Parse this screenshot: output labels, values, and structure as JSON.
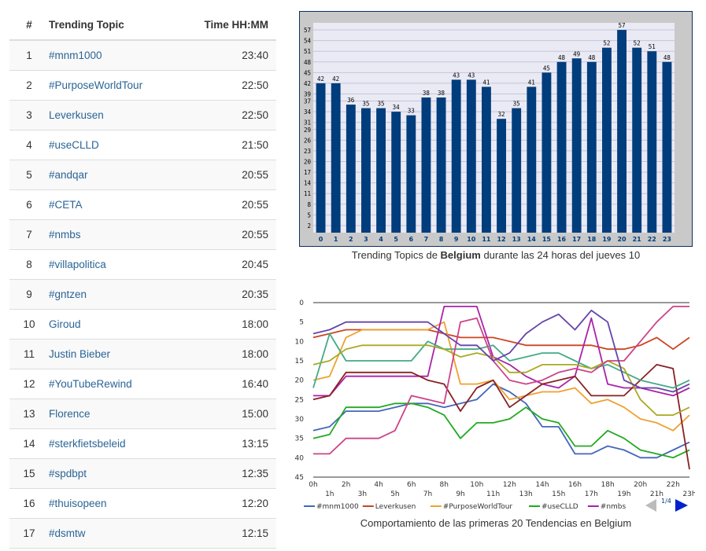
{
  "table": {
    "headers": [
      "#",
      "Trending Topic",
      "Time HH:MM"
    ],
    "rows": [
      {
        "n": "1",
        "topic": "#mnm1000",
        "time": "23:40"
      },
      {
        "n": "2",
        "topic": "#PurposeWorldTour",
        "time": "22:50"
      },
      {
        "n": "3",
        "topic": "Leverkusen",
        "time": "22:50"
      },
      {
        "n": "4",
        "topic": "#useCLLD",
        "time": "21:50"
      },
      {
        "n": "5",
        "topic": "#andqar",
        "time": "20:55"
      },
      {
        "n": "6",
        "topic": "#CETA",
        "time": "20:55"
      },
      {
        "n": "7",
        "topic": "#nmbs",
        "time": "20:55"
      },
      {
        "n": "8",
        "topic": "#villapolitica",
        "time": "20:45"
      },
      {
        "n": "9",
        "topic": "#gntzen",
        "time": "20:35"
      },
      {
        "n": "10",
        "topic": "Giroud",
        "time": "18:00"
      },
      {
        "n": "11",
        "topic": "Justin Bieber",
        "time": "18:00"
      },
      {
        "n": "12",
        "topic": "#YouTubeRewind",
        "time": "16:40"
      },
      {
        "n": "13",
        "topic": "Florence",
        "time": "15:00"
      },
      {
        "n": "14",
        "topic": "#sterkfietsbeleid",
        "time": "13:15"
      },
      {
        "n": "15",
        "topic": "#spdbpt",
        "time": "12:35"
      },
      {
        "n": "16",
        "topic": "#thuisopeen",
        "time": "12:20"
      },
      {
        "n": "17",
        "topic": "#dsmtw",
        "time": "12:15"
      }
    ]
  },
  "captions": {
    "bar_prefix": "Trending Topics de ",
    "bar_bold": "Belgium",
    "bar_suffix": " durante las 24 horas del jueves 10",
    "line": "Comportamiento de las primeras 20 Tendencias en Belgium"
  },
  "chart_data": [
    {
      "type": "bar",
      "categories": [
        "0",
        "1",
        "2",
        "3",
        "4",
        "5",
        "6",
        "7",
        "8",
        "9",
        "10",
        "11",
        "12",
        "13",
        "14",
        "15",
        "16",
        "17",
        "18",
        "19",
        "20",
        "21",
        "22",
        "23"
      ],
      "values": [
        42,
        42,
        36,
        35,
        35,
        34,
        33,
        38,
        38,
        43,
        43,
        41,
        32,
        35,
        41,
        45,
        48,
        49,
        48,
        52,
        57,
        52,
        51,
        48
      ],
      "y_ticks": [
        2,
        5,
        8,
        11,
        14,
        17,
        20,
        23,
        26,
        29,
        31,
        34,
        37,
        39,
        42,
        45,
        48,
        51,
        54,
        57
      ],
      "ylim": [
        0,
        59
      ],
      "bar_color": "#003d7c",
      "plot_bg": "#eaeaf5",
      "grid": true
    },
    {
      "type": "line",
      "x_ticks_top": [
        "0h",
        "2h",
        "4h",
        "6h",
        "8h",
        "10h",
        "12h",
        "14h",
        "16h",
        "18h",
        "20h",
        "22h"
      ],
      "x_ticks_bottom": [
        "1h",
        "3h",
        "5h",
        "7h",
        "9h",
        "11h",
        "13h",
        "15h",
        "17h",
        "19h",
        "21h",
        "23h"
      ],
      "y_ticks": [
        0,
        5,
        10,
        15,
        20,
        25,
        30,
        35,
        40,
        45
      ],
      "ylim": [
        45,
        0
      ],
      "xlim": [
        0,
        23
      ],
      "pager": "1/4",
      "series": [
        {
          "name": "#mnm1000",
          "color": "#4466bb",
          "points": [
            [
              0,
              33
            ],
            [
              1,
              32
            ],
            [
              2,
              28
            ],
            [
              3,
              28
            ],
            [
              4,
              28
            ],
            [
              5,
              27
            ],
            [
              6,
              26
            ],
            [
              7,
              26
            ],
            [
              8,
              27
            ],
            [
              9,
              26
            ],
            [
              10,
              25
            ],
            [
              11,
              21
            ],
            [
              12,
              23
            ],
            [
              13,
              26
            ],
            [
              14,
              32
            ],
            [
              15,
              32
            ],
            [
              16,
              39
            ],
            [
              17,
              39
            ],
            [
              18,
              37
            ],
            [
              19,
              38
            ],
            [
              20,
              40
            ],
            [
              21,
              40
            ],
            [
              22,
              38
            ],
            [
              23,
              36
            ]
          ]
        },
        {
          "name": "Leverkusen",
          "color": "#cc4422",
          "points": [
            [
              0,
              9
            ],
            [
              1,
              8
            ],
            [
              2,
              7
            ],
            [
              3,
              7
            ],
            [
              4,
              7
            ],
            [
              5,
              7
            ],
            [
              6,
              7
            ],
            [
              7,
              7
            ],
            [
              8,
              8
            ],
            [
              9,
              9
            ],
            [
              10,
              9
            ],
            [
              11,
              9
            ],
            [
              12,
              10
            ],
            [
              13,
              11
            ],
            [
              14,
              11
            ],
            [
              15,
              11
            ],
            [
              16,
              11
            ],
            [
              17,
              11
            ],
            [
              18,
              12
            ],
            [
              19,
              12
            ],
            [
              20,
              11
            ],
            [
              21,
              9
            ],
            [
              22,
              12
            ],
            [
              23,
              9
            ]
          ]
        },
        {
          "name": "#PurposeWorldTour",
          "color": "#f0a030",
          "points": [
            [
              0,
              20
            ],
            [
              1,
              19
            ],
            [
              2,
              9
            ],
            [
              3,
              7
            ],
            [
              4,
              7
            ],
            [
              5,
              7
            ],
            [
              6,
              7
            ],
            [
              7,
              7
            ],
            [
              8,
              5
            ],
            [
              9,
              21
            ],
            [
              10,
              21
            ],
            [
              11,
              20
            ],
            [
              12,
              25
            ],
            [
              13,
              24
            ],
            [
              14,
              23
            ],
            [
              15,
              23
            ],
            [
              16,
              22
            ],
            [
              17,
              26
            ],
            [
              18,
              25
            ],
            [
              19,
              27
            ],
            [
              20,
              30
            ],
            [
              21,
              31
            ],
            [
              22,
              33
            ],
            [
              23,
              29
            ]
          ]
        },
        {
          "name": "#useCLLD",
          "color": "#22aa22",
          "points": [
            [
              0,
              35
            ],
            [
              1,
              34
            ],
            [
              2,
              27
            ],
            [
              3,
              27
            ],
            [
              4,
              27
            ],
            [
              5,
              26
            ],
            [
              6,
              26
            ],
            [
              7,
              27
            ],
            [
              8,
              29
            ],
            [
              9,
              35
            ],
            [
              10,
              31
            ],
            [
              11,
              31
            ],
            [
              12,
              30
            ],
            [
              13,
              27
            ],
            [
              14,
              30
            ],
            [
              15,
              31
            ],
            [
              16,
              37
            ],
            [
              17,
              37
            ],
            [
              18,
              33
            ],
            [
              19,
              35
            ],
            [
              20,
              38
            ],
            [
              21,
              39
            ],
            [
              22,
              40
            ],
            [
              23,
              38
            ]
          ]
        },
        {
          "name": "#nmbs",
          "color": "#aa22aa",
          "points": [
            [
              0,
              24
            ],
            [
              1,
              24
            ],
            [
              2,
              19
            ],
            [
              3,
              19
            ],
            [
              4,
              19
            ],
            [
              5,
              19
            ],
            [
              6,
              19
            ],
            [
              7,
              19
            ],
            [
              8,
              1
            ],
            [
              9,
              1
            ],
            [
              10,
              1
            ],
            [
              11,
              14
            ],
            [
              12,
              16
            ],
            [
              13,
              19
            ],
            [
              14,
              21
            ],
            [
              15,
              22
            ],
            [
              16,
              19
            ],
            [
              17,
              4
            ],
            [
              18,
              21
            ],
            [
              19,
              22
            ],
            [
              20,
              22
            ],
            [
              21,
              23
            ],
            [
              22,
              24
            ],
            [
              23,
              22
            ]
          ]
        },
        {
          "name": "",
          "color": "#882222",
          "points": [
            [
              0,
              25
            ],
            [
              1,
              24
            ],
            [
              2,
              18
            ],
            [
              3,
              18
            ],
            [
              4,
              18
            ],
            [
              5,
              18
            ],
            [
              6,
              18
            ],
            [
              7,
              20
            ],
            [
              8,
              21
            ],
            [
              9,
              28
            ],
            [
              10,
              22
            ],
            [
              11,
              20
            ],
            [
              12,
              27
            ],
            [
              13,
              24
            ],
            [
              14,
              21
            ],
            [
              15,
              20
            ],
            [
              16,
              19
            ],
            [
              17,
              24
            ],
            [
              18,
              24
            ],
            [
              19,
              24
            ],
            [
              21,
              16
            ],
            [
              22,
              17
            ],
            [
              23,
              43
            ]
          ]
        },
        {
          "name": "",
          "color": "#44aa88",
          "points": [
            [
              0,
              22
            ],
            [
              1,
              8
            ],
            [
              2,
              15
            ],
            [
              3,
              15
            ],
            [
              4,
              15
            ],
            [
              5,
              15
            ],
            [
              6,
              15
            ],
            [
              7,
              10
            ],
            [
              8,
              12
            ],
            [
              9,
              12
            ],
            [
              10,
              12
            ],
            [
              11,
              11
            ],
            [
              12,
              15
            ],
            [
              13,
              14
            ],
            [
              14,
              13
            ],
            [
              15,
              13
            ],
            [
              16,
              15
            ],
            [
              17,
              17
            ],
            [
              18,
              16
            ],
            [
              19,
              18
            ],
            [
              20,
              20
            ],
            [
              21,
              21
            ],
            [
              22,
              22
            ],
            [
              23,
              20
            ]
          ]
        },
        {
          "name": "",
          "color": "#aaaa22",
          "points": [
            [
              0,
              16
            ],
            [
              1,
              15
            ],
            [
              2,
              12
            ],
            [
              3,
              11
            ],
            [
              4,
              11
            ],
            [
              5,
              11
            ],
            [
              6,
              11
            ],
            [
              7,
              11
            ],
            [
              8,
              12
            ],
            [
              9,
              14
            ],
            [
              10,
              13
            ],
            [
              11,
              14
            ],
            [
              12,
              18
            ],
            [
              13,
              18
            ],
            [
              14,
              16
            ],
            [
              15,
              16
            ],
            [
              16,
              16
            ],
            [
              17,
              17
            ],
            [
              18,
              15
            ],
            [
              19,
              17
            ],
            [
              20,
              25
            ],
            [
              21,
              29
            ],
            [
              22,
              29
            ],
            [
              23,
              27
            ]
          ]
        },
        {
          "name": "",
          "color": "#cc4488",
          "points": [
            [
              0,
              39
            ],
            [
              1,
              39
            ],
            [
              2,
              35
            ],
            [
              3,
              35
            ],
            [
              4,
              35
            ],
            [
              5,
              33
            ],
            [
              6,
              24
            ],
            [
              7,
              25
            ],
            [
              8,
              26
            ],
            [
              9,
              5
            ],
            [
              10,
              4
            ],
            [
              11,
              15
            ],
            [
              12,
              20
            ],
            [
              13,
              21
            ],
            [
              14,
              20
            ],
            [
              15,
              18
            ],
            [
              16,
              17
            ],
            [
              17,
              18
            ],
            [
              18,
              15
            ],
            [
              19,
              15
            ],
            [
              20,
              10
            ],
            [
              21,
              5
            ],
            [
              22,
              1
            ],
            [
              23,
              1
            ]
          ]
        },
        {
          "name": "",
          "color": "#6644aa",
          "points": [
            [
              0,
              8
            ],
            [
              1,
              7
            ],
            [
              2,
              5
            ],
            [
              3,
              5
            ],
            [
              4,
              5
            ],
            [
              5,
              5
            ],
            [
              6,
              5
            ],
            [
              7,
              5
            ],
            [
              8,
              8
            ],
            [
              9,
              11
            ],
            [
              10,
              11
            ],
            [
              11,
              15
            ],
            [
              12,
              13
            ],
            [
              13,
              8
            ],
            [
              14,
              5
            ],
            [
              15,
              3
            ],
            [
              16,
              7
            ],
            [
              17,
              2
            ],
            [
              18,
              5
            ],
            [
              19,
              20
            ],
            [
              20,
              22
            ],
            [
              21,
              22
            ],
            [
              22,
              23
            ],
            [
              23,
              21
            ]
          ]
        }
      ]
    }
  ]
}
